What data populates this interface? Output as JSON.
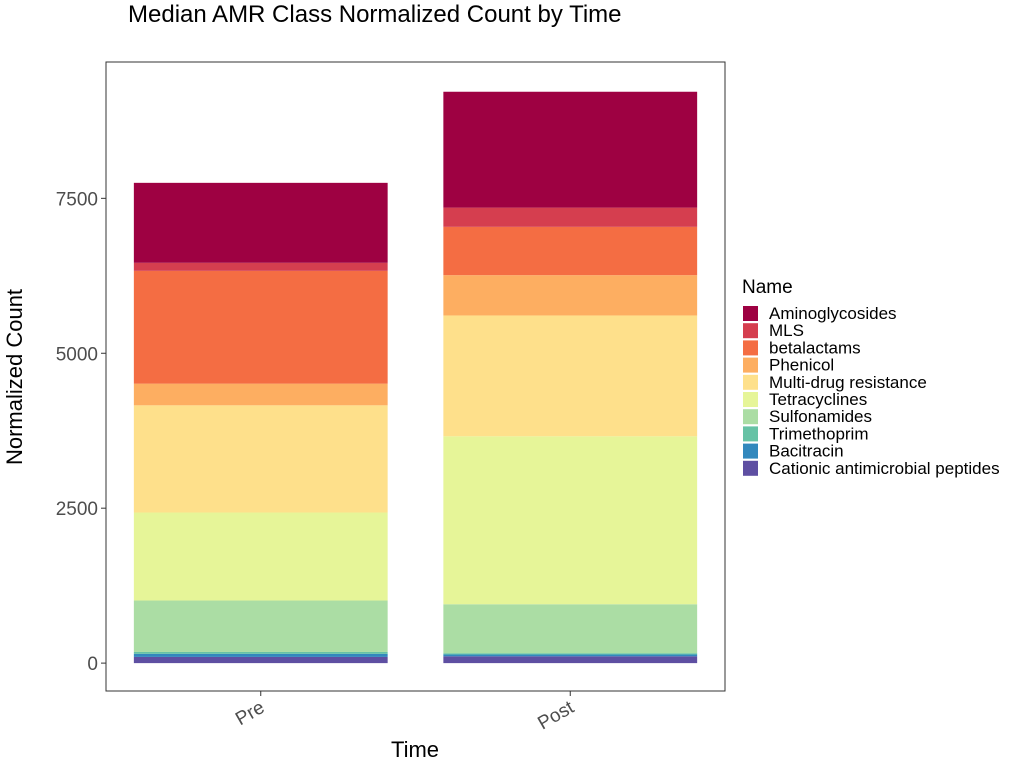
{
  "chart_data": {
    "type": "bar",
    "stacked": true,
    "title": "Median AMR Class Normalized Count by Time",
    "xlabel": "Time",
    "ylabel": "Normalized Count",
    "categories": [
      "Pre",
      "Post"
    ],
    "ylim": [
      -450,
      9700
    ],
    "yticks": [
      0,
      2500,
      5000,
      7500
    ],
    "grid": false,
    "legend": {
      "title": "Name",
      "position": "right"
    },
    "series": [
      {
        "name": "Cationic antimicrobial peptides",
        "color": "#5E4FA2",
        "values": [
          100,
          110
        ]
      },
      {
        "name": "Bacitracin",
        "color": "#3288BD",
        "values": [
          50,
          30
        ]
      },
      {
        "name": "Trimethoprim",
        "color": "#66C2A5",
        "values": [
          30,
          20
        ]
      },
      {
        "name": "Sulfonamides",
        "color": "#ABDDA4",
        "values": [
          830,
          790
        ]
      },
      {
        "name": "Tetracyclines",
        "color": "#E6F598",
        "values": [
          1420,
          2710
        ]
      },
      {
        "name": "Multi-drug resistance",
        "color": "#FEE08B",
        "values": [
          1730,
          1950
        ]
      },
      {
        "name": "Phenicol",
        "color": "#FDAE61",
        "values": [
          350,
          650
        ]
      },
      {
        "name": "betalactams",
        "color": "#F46D43",
        "values": [
          1820,
          780
        ]
      },
      {
        "name": "MLS",
        "color": "#D53E4F",
        "values": [
          130,
          310
        ]
      },
      {
        "name": "Aminoglycosides",
        "color": "#9E0142",
        "values": [
          1290,
          1870
        ]
      }
    ]
  }
}
